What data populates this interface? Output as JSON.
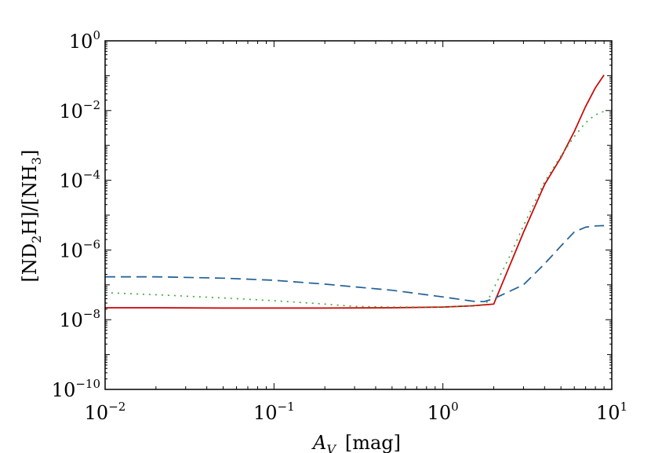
{
  "chart_data": {
    "type": "line",
    "xlabel": {
      "var": "A",
      "sub": "V",
      "unit": "[mag]"
    },
    "ylabel": {
      "p1": "[ND",
      "s1": "2",
      "p2": "H]/[NH",
      "s2": "3",
      "p3": "]"
    },
    "xscale": "log",
    "yscale": "log",
    "xlim": [
      0.01,
      10
    ],
    "ylim": [
      1e-10,
      1
    ],
    "grid": false,
    "x_ticks": [
      {
        "value": 0.01,
        "base": "10",
        "exp": "−2"
      },
      {
        "value": 0.1,
        "base": "10",
        "exp": "−1"
      },
      {
        "value": 1,
        "base": "10",
        "exp": "0"
      },
      {
        "value": 10,
        "base": "10",
        "exp": "1"
      }
    ],
    "y_ticks": [
      {
        "value": 1,
        "base": "10",
        "exp": "0"
      },
      {
        "value": 0.01,
        "base": "10",
        "exp": "−2"
      },
      {
        "value": 0.0001,
        "base": "10",
        "exp": "−4"
      },
      {
        "value": 1e-06,
        "base": "10",
        "exp": "−6"
      },
      {
        "value": 1e-08,
        "base": "10",
        "exp": "−8"
      },
      {
        "value": 1e-10,
        "base": "10",
        "exp": "−10"
      }
    ],
    "series": [
      {
        "style": "solid",
        "color": "#cc0000",
        "points": [
          [
            0.01,
            2.2e-08
          ],
          [
            0.02,
            2.2e-08
          ],
          [
            0.05,
            2.15e-08
          ],
          [
            0.1,
            2.15e-08
          ],
          [
            0.2,
            2.15e-08
          ],
          [
            0.5,
            2.2e-08
          ],
          [
            1.0,
            2.3e-08
          ],
          [
            1.5,
            2.5e-08
          ],
          [
            2.0,
            2.8e-08
          ],
          [
            3.0,
            3.2e-06
          ],
          [
            4.0,
            7.5e-05
          ],
          [
            5.0,
            0.00045
          ],
          [
            6.0,
            0.0025
          ],
          [
            7.0,
            0.013
          ],
          [
            8.0,
            0.045
          ],
          [
            9.0,
            0.105
          ]
        ]
      },
      {
        "style": "dotted",
        "color": "#33aa33",
        "points": [
          [
            0.01,
            6e-08
          ],
          [
            0.02,
            5.2e-08
          ],
          [
            0.05,
            4.2e-08
          ],
          [
            0.1,
            3.5e-08
          ],
          [
            0.2,
            2.8e-08
          ],
          [
            0.3,
            2.4e-08
          ],
          [
            0.5,
            2.3e-08
          ],
          [
            1.0,
            2.3e-08
          ],
          [
            1.5,
            2.5e-08
          ],
          [
            1.8,
            2.8e-08
          ],
          [
            2.5,
            7e-07
          ],
          [
            3.0,
            5e-06
          ],
          [
            4.0,
            9e-05
          ],
          [
            5.0,
            0.0005
          ],
          [
            6.0,
            0.0018
          ],
          [
            7.0,
            0.0045
          ],
          [
            8.0,
            0.0075
          ],
          [
            9.0,
            0.0095
          ]
        ]
      },
      {
        "style": "dashed",
        "color": "#1f5f94",
        "points": [
          [
            0.01,
            1.7e-07
          ],
          [
            0.02,
            1.7e-07
          ],
          [
            0.05,
            1.55e-07
          ],
          [
            0.1,
            1.35e-07
          ],
          [
            0.2,
            1.05e-07
          ],
          [
            0.5,
            7e-08
          ],
          [
            1.0,
            4.5e-08
          ],
          [
            1.5,
            3.4e-08
          ],
          [
            1.75,
            3.3e-08
          ],
          [
            2.0,
            4e-08
          ],
          [
            3.0,
            1e-07
          ],
          [
            4.0,
            4e-07
          ],
          [
            5.0,
            1.3e-06
          ],
          [
            6.0,
            3.3e-06
          ],
          [
            7.0,
            4.5e-06
          ],
          [
            8.0,
            4.9e-06
          ],
          [
            9.0,
            5e-06
          ]
        ]
      }
    ]
  }
}
